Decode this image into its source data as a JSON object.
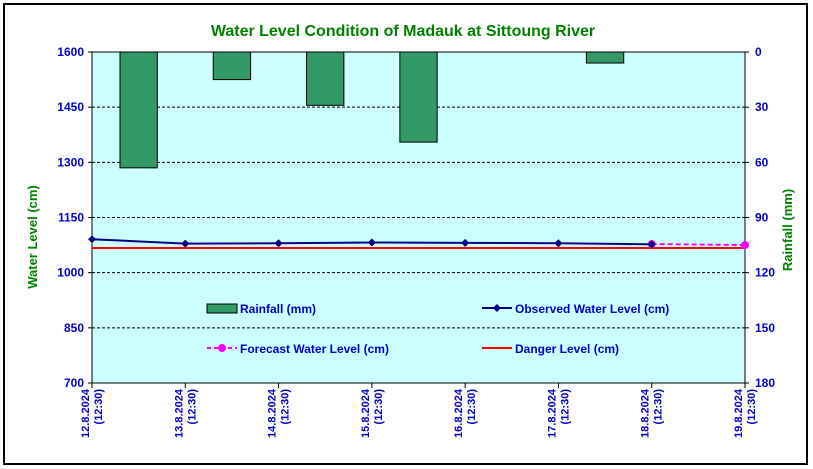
{
  "chart_data": {
    "type": "bar+line",
    "title": "Water Level Condition of Madauk at Sittoung River",
    "ylabel_left": "Water Level (cm)",
    "ylabel_right": "Rainfall (mm)",
    "xlabel": "",
    "ylim_left": [
      700,
      1600
    ],
    "yticks_left": [
      "1600",
      "1450",
      "1300",
      "1150",
      "1000",
      "850",
      "700"
    ],
    "ylim_right": [
      0,
      180
    ],
    "right_axis_inverted": true,
    "yticks_right": [
      "0",
      "30",
      "60",
      "90",
      "120",
      "150",
      "180"
    ],
    "x_labels": [
      {
        "date": "12.8.2024",
        "time": "(12:30)"
      },
      {
        "date": "13.8.2024",
        "time": "(12:30)"
      },
      {
        "date": "14.8.2024",
        "time": "(12:30)"
      },
      {
        "date": "15.8.2024",
        "time": "(12:30)"
      },
      {
        "date": "16.8.2024",
        "time": "(12:30)"
      },
      {
        "date": "17.8.2024",
        "time": "(12:30)"
      },
      {
        "date": "18.8.2024",
        "time": "(12:30)"
      },
      {
        "date": "19.8.2024",
        "time": "(12:30)"
      }
    ],
    "rainfall_mm": [
      63,
      15,
      29,
      49,
      0,
      6
    ],
    "observed_water_level_cm": [
      1091,
      1079,
      1080,
      1082,
      1081,
      1080,
      1077
    ],
    "forecast_water_level_cm": [
      null,
      null,
      null,
      null,
      null,
      null,
      1078,
      1075
    ],
    "danger_level_cm": 1067,
    "legend": {
      "rainfall": "Rainfall (mm)",
      "observed": "Observed Water Level (cm)",
      "forecast": "Forecast Water Level (cm)",
      "danger": "Danger Level (cm)"
    },
    "grid": true,
    "colors": {
      "plot_bg": "#ccffff",
      "rainfall": "#339966",
      "observed": "#000080",
      "forecast": "#ff00ff",
      "danger": "#ff0000",
      "title": "#008000",
      "axis_text": "#0000cc",
      "axis_title": "#008000"
    }
  }
}
